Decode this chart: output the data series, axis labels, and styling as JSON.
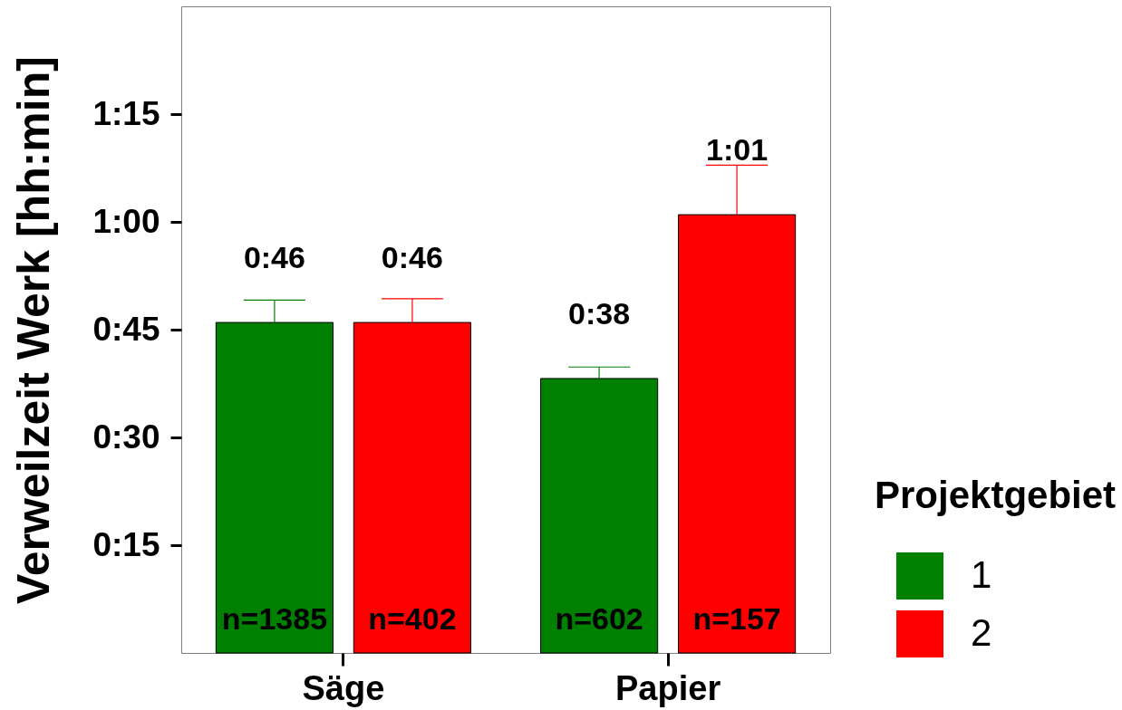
{
  "chart_data": {
    "type": "bar",
    "ylabel": "Verweilzeit Werk [hh:min]",
    "legend_title": "Projektgebiet",
    "categories": [
      "Säge",
      "Papier"
    ],
    "series": [
      {
        "name": "1",
        "color": "#008000",
        "values": [
          46,
          38.2
        ],
        "errors": [
          [
            46,
            49.1
          ],
          [
            38.2,
            39.8
          ]
        ],
        "value_labels": [
          "0:46",
          "0:38"
        ]
      },
      {
        "name": "2",
        "color": "#ff0000",
        "values": [
          46,
          61
        ],
        "errors": [
          [
            46,
            49.3
          ],
          [
            61,
            67.9
          ]
        ],
        "value_labels": [
          "0:46",
          "1:01"
        ]
      }
    ],
    "ylim": [
      0,
      90
    ],
    "yticks": [
      {
        "value": 15,
        "label": "0:15"
      },
      {
        "value": 30,
        "label": "0:30"
      },
      {
        "value": 45,
        "label": "0:45"
      },
      {
        "value": 60,
        "label": "1:00"
      },
      {
        "value": 75,
        "label": "1:15"
      }
    ],
    "annotations": [
      "n=1385",
      "n=402",
      "n=602",
      "n=157"
    ],
    "grid": false,
    "legend": "bottom right"
  }
}
